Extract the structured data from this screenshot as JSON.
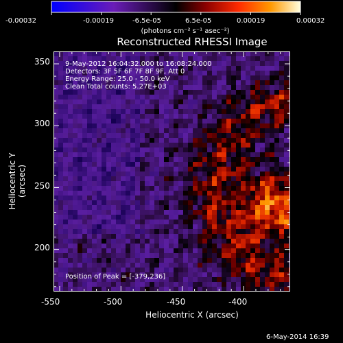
{
  "chart_data": {
    "type": "heatmap",
    "title": "Reconstructed RHESSI Image",
    "xlabel": "Heliocentric X (arcsec)",
    "ylabel": "Heliocentric Y (arcsec)",
    "xlim": [
      -555,
      -362
    ],
    "ylim": [
      166,
      360
    ],
    "xticks": [
      "-550",
      "-500",
      "-450",
      "-400"
    ],
    "yticks": [
      "350",
      "300",
      "250",
      "200"
    ],
    "colorbar": {
      "ticks": [
        "-0.00032",
        "-0.00019",
        "-6.5e-05",
        "6.5e-05",
        "0.00019",
        "0.00032"
      ],
      "unit": "(photons cm⁻² s⁻¹ asec⁻²)",
      "range": [
        -0.00032,
        0.00032
      ]
    },
    "annotations": {
      "time": "9-May-2012 16:04:32.000 to 16:08:24.000",
      "detectors": "Detectors: 3F 5F 6F 7F 8F 9F, Att 0",
      "energy": "Energy Range: 25.0 - 50.0 keV",
      "method": "Clean     Total counts: 5.27E+03",
      "peak": "Position of Peak = [-379,236]"
    },
    "footer_date": "6-May-2014 16:39"
  }
}
